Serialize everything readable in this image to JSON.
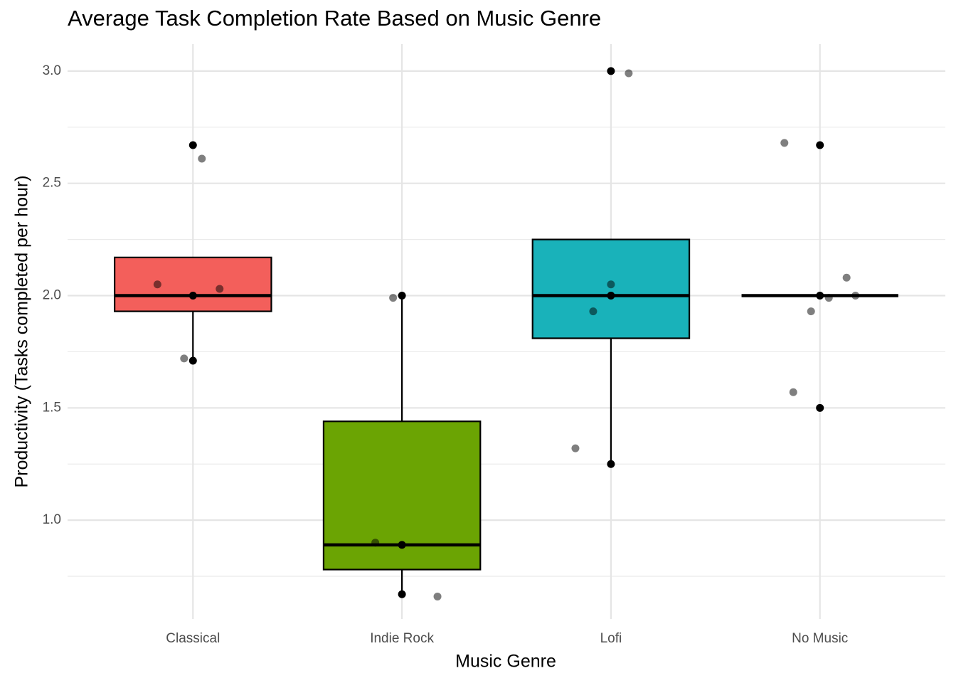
{
  "chart_data": {
    "type": "box",
    "title": "Average Task Completion Rate Based on Music Genre",
    "x_label": "Music Genre",
    "y_label": "Productivity (Tasks completed per hour)",
    "categories": [
      "Classical",
      "Indie Rock",
      "Lofi",
      "No Music"
    ],
    "colors": [
      "#F35F5B",
      "#6BA403",
      "#19B2BA",
      "#C77CFF"
    ],
    "whisker_low": [
      1.71,
      0.67,
      1.25,
      2.0
    ],
    "q1": [
      1.93,
      0.78,
      1.81,
      2.0
    ],
    "median": [
      2.0,
      0.89,
      2.0,
      2.0
    ],
    "q3": [
      2.17,
      1.44,
      2.25,
      2.0
    ],
    "whisker_high": [
      2.17,
      2.0,
      2.25,
      2.0
    ],
    "points": [
      [
        2.67,
        2.0,
        1.71
      ],
      [
        2.0,
        0.89,
        0.67
      ],
      [
        3.0,
        2.0,
        1.25
      ],
      [
        2.67,
        2.0,
        1.5
      ]
    ],
    "jitter": [
      [
        2.05,
        2.03,
        2.61,
        1.72
      ],
      [
        1.99,
        0.9,
        0.66
      ],
      [
        2.99,
        2.05,
        1.93,
        1.32
      ],
      [
        2.68,
        2.08,
        1.99,
        1.93,
        1.57,
        2.0
      ]
    ],
    "ylim": [
      0.56,
      3.12
    ],
    "yticks": [
      {
        "value": 1.0,
        "label": "1.0"
      },
      1.5,
      {
        "value": 2.0,
        "label": "2.0"
      },
      2.5,
      {
        "value": 3.0,
        "label": "3.0"
      }
    ],
    "minor_yticks": [
      0.75,
      1.25,
      1.75,
      2.25,
      2.75
    ],
    "grid": true
  }
}
